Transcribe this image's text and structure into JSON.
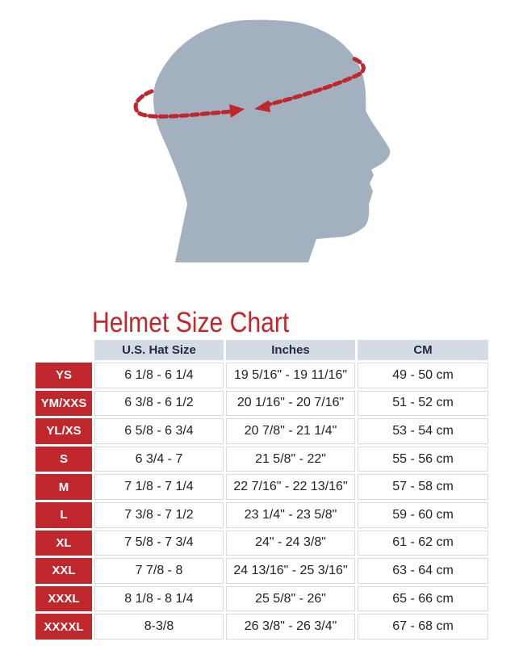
{
  "title": "Helmet Size Chart",
  "colors": {
    "accent": "#c0272d",
    "head": "#a3b0bf",
    "header_bg": "#d4dbe4"
  },
  "table": {
    "headers": [
      "",
      "U.S. Hat Size",
      "Inches",
      "CM"
    ],
    "rows": [
      [
        "YS",
        "6 1/8 - 6 1/4",
        "19 5/16\" - 19 11/16\"",
        "49 - 50 cm"
      ],
      [
        "YM/XXS",
        "6 3/8 - 6 1/2",
        "20 1/16\" - 20 7/16\"",
        "51 - 52 cm"
      ],
      [
        "YL/XS",
        "6 5/8 - 6 3/4",
        "20 7/8\" - 21 1/4\"",
        "53 - 54 cm"
      ],
      [
        "S",
        "6 3/4 - 7",
        "21 5/8\" - 22\"",
        "55 - 56 cm"
      ],
      [
        "M",
        "7 1/8 - 7 1/4",
        "22 7/16\" - 22 13/16\"",
        "57 - 58 cm"
      ],
      [
        "L",
        "7 3/8 - 7 1/2",
        "23 1/4\" - 23 5/8\"",
        "59 - 60 cm"
      ],
      [
        "XL",
        "7 5/8 - 7 3/4",
        "24\" - 24 3/8\"",
        "61 - 62 cm"
      ],
      [
        "XXL",
        "7 7/8 - 8",
        "24 13/16\" - 25 3/16\"",
        "63 - 64 cm"
      ],
      [
        "XXXL",
        "8 1/8 - 8 1/4",
        "25 5/8\" - 26\"",
        "65 - 66 cm"
      ],
      [
        "XXXXL",
        "8-3/8",
        "26 3/8\" - 26 3/4\"",
        "67 - 68 cm"
      ]
    ]
  }
}
